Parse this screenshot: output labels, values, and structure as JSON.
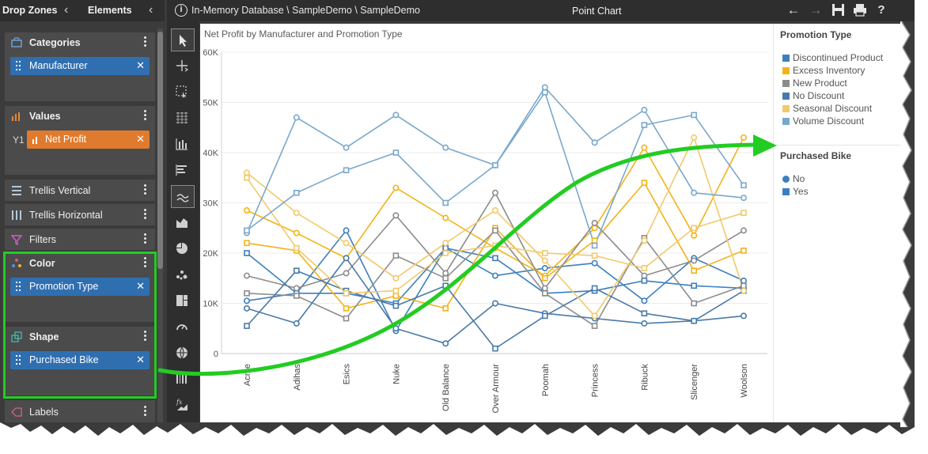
{
  "drop_zones": {
    "tab_drop_zones": "Drop Zones",
    "tab_elements": "Elements",
    "categories": {
      "title": "Categories",
      "field": "Manufacturer"
    },
    "values": {
      "title": "Values",
      "axis_label": "Y1",
      "field": "Net Profit"
    },
    "trellis_vertical": {
      "title": "Trellis Vertical"
    },
    "trellis_horizontal": {
      "title": "Trellis Horizontal"
    },
    "filters": {
      "title": "Filters"
    },
    "color": {
      "title": "Color",
      "field": "Promotion Type"
    },
    "shape": {
      "title": "Shape",
      "field": "Purchased Bike"
    },
    "labels": {
      "title": "Labels"
    }
  },
  "header": {
    "path": "In-Memory Database \\ SampleDemo \\ SampleDemo",
    "title": "Point Chart",
    "help": "?"
  },
  "colors": {
    "highlight": "#22cc22",
    "Discontinued Product": "#3c7fbf",
    "Excess Inventory": "#f2b318",
    "New Product": "#8c8c8c",
    "No Discount": "#4a7aa8",
    "Seasonal Discount": "#f2c96b",
    "Volume Discount": "#79a8cc"
  },
  "chart_data": {
    "type": "line",
    "title": "Net Profit by Manufacturer and Promotion Type",
    "xlabel": "",
    "ylabel": "",
    "ylim": [
      0,
      60000
    ],
    "yticks": [
      0,
      10000,
      20000,
      30000,
      40000,
      50000,
      60000
    ],
    "ytick_labels": [
      "0",
      "10K",
      "20K",
      "30K",
      "40K",
      "50K",
      "60K"
    ],
    "grid": true,
    "categories": [
      "Acme",
      "Adihas",
      "Esics",
      "Nuke",
      "Old Balance",
      "Over Armour",
      "Poomah",
      "Princess",
      "Ribuck",
      "Slicenger",
      "Woolson"
    ],
    "legend_color_title": "Promotion Type",
    "legend_shape_title": "Purchased Bike",
    "legend_position": "right",
    "shapes": [
      {
        "name": "No",
        "marker": "circle"
      },
      {
        "name": "Yes",
        "marker": "square"
      }
    ],
    "series": [
      {
        "name": "Discontinued Product",
        "shape": "No",
        "values": [
          10500,
          12000,
          24500,
          4500,
          21000,
          15500,
          17000,
          18000,
          10500,
          19000,
          14500
        ]
      },
      {
        "name": "Discontinued Product",
        "shape": "Yes",
        "values": [
          20000,
          12000,
          12000,
          10000,
          21000,
          19000,
          12000,
          12500,
          14500,
          13500,
          13000
        ]
      },
      {
        "name": "Excess Inventory",
        "shape": "No",
        "values": [
          28500,
          24000,
          19000,
          33000,
          27000,
          21000,
          15500,
          25000,
          41000,
          23500,
          43000
        ]
      },
      {
        "name": "Excess Inventory",
        "shape": "Yes",
        "values": [
          22000,
          20500,
          9000,
          11500,
          9000,
          25000,
          15000,
          22500,
          34000,
          16500,
          20500
        ]
      },
      {
        "name": "New Product",
        "shape": "No",
        "values": [
          15500,
          13000,
          16000,
          27500,
          16000,
          32000,
          13000,
          26000,
          15500,
          18500,
          24500
        ]
      },
      {
        "name": "New Product",
        "shape": "Yes",
        "values": [
          12000,
          11500,
          7000,
          19500,
          15000,
          24500,
          12000,
          5500,
          23000,
          10000,
          13500
        ]
      },
      {
        "name": "No Discount",
        "shape": "No",
        "values": [
          9000,
          6000,
          19000,
          5000,
          2000,
          10000,
          8000,
          7000,
          6000,
          6500,
          7500
        ]
      },
      {
        "name": "No Discount",
        "shape": "Yes",
        "values": [
          5500,
          16500,
          12500,
          9500,
          13500,
          1000,
          7500,
          13000,
          8000,
          6500,
          12500
        ]
      },
      {
        "name": "Seasonal Discount",
        "shape": "No",
        "values": [
          36000,
          28000,
          22000,
          15000,
          22000,
          28500,
          18500,
          7500,
          22500,
          43000,
          12500
        ]
      },
      {
        "name": "Seasonal Discount",
        "shape": "Yes",
        "values": [
          35000,
          21000,
          12000,
          12500,
          20000,
          21500,
          20000,
          19500,
          17000,
          25000,
          28000
        ]
      },
      {
        "name": "Volume Discount",
        "shape": "No",
        "values": [
          24000,
          47000,
          41000,
          47500,
          41000,
          37500,
          53000,
          42000,
          48500,
          32000,
          31000
        ]
      },
      {
        "name": "Volume Discount",
        "shape": "Yes",
        "values": [
          24500,
          32000,
          36500,
          40000,
          30000,
          37500,
          52000,
          21500,
          45500,
          47500,
          33500
        ]
      }
    ]
  }
}
